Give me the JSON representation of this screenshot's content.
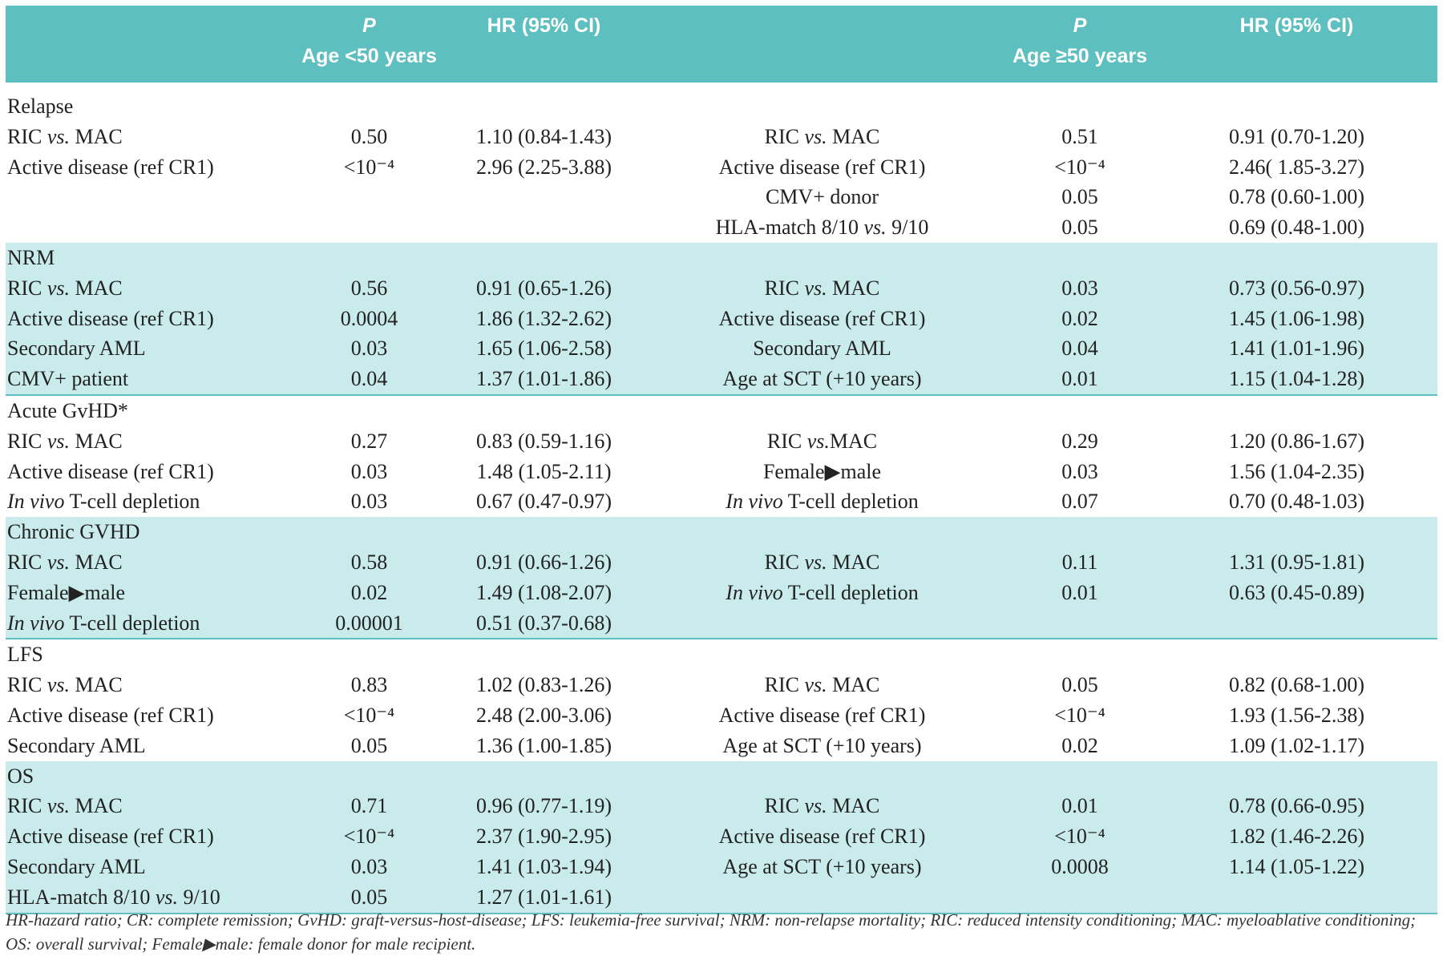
{
  "header": {
    "left": {
      "p": "P",
      "group": "Age <50 years",
      "hr": "HR (95% CI)"
    },
    "right": {
      "p": "P",
      "group": "Age ≥50 years",
      "hr": "HR (95% CI)"
    }
  },
  "sections": [
    {
      "title": "Relapse",
      "rows": [
        {
          "left": {
            "label": [
              "RIC ",
              {
                "italic": "vs."
              },
              " MAC"
            ],
            "p": "0.50",
            "hr": "1.10 (0.84-1.43)"
          },
          "right": {
            "label": [
              "RIC ",
              {
                "italic": "vs."
              },
              " MAC"
            ],
            "p": "0.51",
            "hr": "0.91 (0.70-1.20)"
          }
        },
        {
          "left": {
            "label": [
              "Active disease (ref CR1)"
            ],
            "p": "<10⁻⁴",
            "hr": "2.96 (2.25-3.88)"
          },
          "right": {
            "label": [
              "Active disease (ref CR1)"
            ],
            "p": "<10⁻⁴",
            "hr": "2.46( 1.85-3.27)"
          }
        },
        {
          "left": null,
          "right": {
            "label": [
              "CMV+ donor"
            ],
            "p": "0.05",
            "hr": "0.78 (0.60-1.00)"
          }
        },
        {
          "left": null,
          "right": {
            "label": [
              "HLA-match 8/10 ",
              {
                "italic": "vs."
              },
              " 9/10"
            ],
            "p": "0.05",
            "hr": "0.69 (0.48-1.00)"
          }
        }
      ]
    },
    {
      "title": "NRM",
      "rows": [
        {
          "left": {
            "label": [
              "RIC ",
              {
                "italic": "vs."
              },
              " MAC"
            ],
            "p": "0.56",
            "hr": "0.91 (0.65-1.26)"
          },
          "right": {
            "label": [
              "RIC ",
              {
                "italic": "vs."
              },
              " MAC"
            ],
            "p": "0.03",
            "hr": "0.73 (0.56-0.97)"
          }
        },
        {
          "left": {
            "label": [
              "Active disease (ref CR1)"
            ],
            "p": "0.0004",
            "hr": "1.86 (1.32-2.62)"
          },
          "right": {
            "label": [
              "Active disease (ref CR1)"
            ],
            "p": "0.02",
            "hr": "1.45 (1.06-1.98)"
          }
        },
        {
          "left": {
            "label": [
              "Secondary AML"
            ],
            "p": "0.03",
            "hr": "1.65 (1.06-2.58)"
          },
          "right": {
            "label": [
              "Secondary AML"
            ],
            "p": "0.04",
            "hr": "1.41 (1.01-1.96)"
          }
        },
        {
          "left": {
            "label": [
              "CMV+ patient"
            ],
            "p": "0.04",
            "hr": "1.37 (1.01-1.86)"
          },
          "right": {
            "label": [
              "Age at SCT (+10 years)"
            ],
            "p": "0.01",
            "hr": "1.15 (1.04-1.28)"
          }
        }
      ]
    },
    {
      "title": "Acute GvHD*",
      "rows": [
        {
          "left": {
            "label": [
              "RIC ",
              {
                "italic": "vs."
              },
              " MAC"
            ],
            "p": "0.27",
            "hr": "0.83 (0.59-1.16)"
          },
          "right": {
            "label": [
              "RIC ",
              {
                "italic": "vs."
              },
              "MAC"
            ],
            "p": "0.29",
            "hr": "1.20 (0.86-1.67)"
          }
        },
        {
          "left": {
            "label": [
              "Active disease (ref CR1)"
            ],
            "p": "0.03",
            "hr": "1.48 (1.05-2.11)"
          },
          "right": {
            "label": [
              "Female▶male"
            ],
            "p": "0.03",
            "hr": "1.56 (1.04-2.35)"
          }
        },
        {
          "left": {
            "label": [
              {
                "italic": "In vivo"
              },
              " T-cell depletion"
            ],
            "p": "0.03",
            "hr": "0.67 (0.47-0.97)"
          },
          "right": {
            "label": [
              {
                "italic": "In vivo"
              },
              " T-cell depletion"
            ],
            "p": "0.07",
            "hr": "0.70 (0.48-1.03)"
          }
        }
      ]
    },
    {
      "title": "Chronic GVHD",
      "rows": [
        {
          "left": {
            "label": [
              "RIC ",
              {
                "italic": "vs."
              },
              " MAC"
            ],
            "p": "0.58",
            "hr": "0.91 (0.66-1.26)"
          },
          "right": {
            "label": [
              "RIC ",
              {
                "italic": "vs."
              },
              " MAC"
            ],
            "p": "0.11",
            "hr": "1.31 (0.95-1.81)"
          }
        },
        {
          "left": {
            "label": [
              "Female▶male"
            ],
            "p": "0.02",
            "hr": "1.49 (1.08-2.07)"
          },
          "right": {
            "label": [
              {
                "italic": "In vivo"
              },
              " T-cell depletion"
            ],
            "p": "0.01",
            "hr": "0.63 (0.45-0.89)"
          }
        },
        {
          "left": {
            "label": [
              {
                "italic": "In vivo"
              },
              " T-cell depletion"
            ],
            "p": "0.00001",
            "hr": "0.51 (0.37-0.68)"
          },
          "right": null
        }
      ]
    },
    {
      "title": "LFS",
      "rows": [
        {
          "left": {
            "label": [
              "RIC ",
              {
                "italic": "vs."
              },
              " MAC"
            ],
            "p": "0.83",
            "hr": "1.02 (0.83-1.26)"
          },
          "right": {
            "label": [
              "RIC ",
              {
                "italic": "vs."
              },
              " MAC"
            ],
            "p": "0.05",
            "hr": "0.82 (0.68-1.00)"
          }
        },
        {
          "left": {
            "label": [
              "Active disease (ref CR1)"
            ],
            "p": "<10⁻⁴",
            "hr": "2.48 (2.00-3.06)"
          },
          "right": {
            "label": [
              "Active disease (ref CR1)"
            ],
            "p": "<10⁻⁴",
            "hr": "1.93 (1.56-2.38)"
          }
        },
        {
          "left": {
            "label": [
              "Secondary AML"
            ],
            "p": "0.05",
            "hr": "1.36 (1.00-1.85)"
          },
          "right": {
            "label": [
              "Age at SCT (+10 years)"
            ],
            "p": "0.02",
            "hr": "1.09 (1.02-1.17)"
          }
        }
      ]
    },
    {
      "title": "OS",
      "rows": [
        {
          "left": {
            "label": [
              "RIC ",
              {
                "italic": "vs."
              },
              " MAC"
            ],
            "p": "0.71",
            "hr": "0.96 (0.77-1.19)"
          },
          "right": {
            "label": [
              "RIC ",
              {
                "italic": "vs."
              },
              " MAC"
            ],
            "p": "0.01",
            "hr": "0.78 (0.66-0.95)"
          }
        },
        {
          "left": {
            "label": [
              "Active disease (ref CR1)"
            ],
            "p": "<10⁻⁴",
            "hr": "2.37 (1.90-2.95)"
          },
          "right": {
            "label": [
              "Active disease (ref CR1)"
            ],
            "p": "<10⁻⁴",
            "hr": "1.82 (1.46-2.26)"
          }
        },
        {
          "left": {
            "label": [
              "Secondary AML"
            ],
            "p": "0.03",
            "hr": "1.41 (1.03-1.94)"
          },
          "right": {
            "label": [
              "Age at SCT (+10 years)"
            ],
            "p": "0.0008",
            "hr": "1.14 (1.05-1.22)"
          }
        },
        {
          "left": {
            "label": [
              "HLA-match 8/10 ",
              {
                "italic": "vs."
              },
              " 9/10"
            ],
            "p": "0.05",
            "hr": "1.27 (1.01-1.61)"
          },
          "right": null
        }
      ]
    }
  ],
  "footnote": "HR-hazard ratio; CR: complete remission; GvHD: graft-versus-host-disease; LFS: leukemia-free survival; NRM: non-relapse mortality; RIC: reduced intensity conditioning; MAC: myeloablative conditioning; OS: overall survival; Female▶male: female donor for male recipient."
}
